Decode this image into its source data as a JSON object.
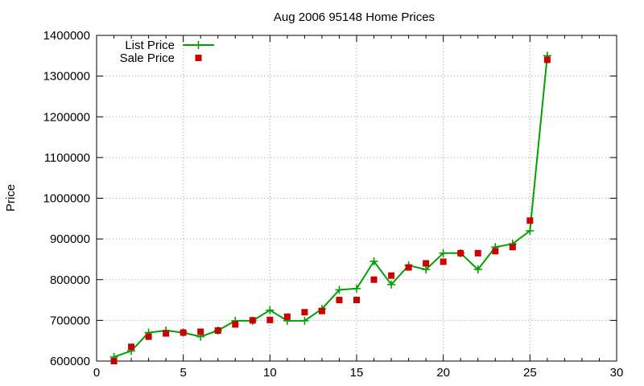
{
  "chart_data": {
    "type": "line",
    "title": "Aug 2006 95148 Home Prices",
    "xlabel": "",
    "ylabel": "Price",
    "xlim": [
      0,
      30
    ],
    "ylim": [
      600000,
      1400000
    ],
    "xticks": [
      "0",
      "5",
      "10",
      "15",
      "20",
      "25",
      "30"
    ],
    "yticks": [
      "600000",
      "700000",
      "800000",
      "900000",
      "1000000",
      "1100000",
      "1200000",
      "1300000",
      "1400000"
    ],
    "grid": true,
    "legend_position": "top-left",
    "series": [
      {
        "name": "List Price",
        "style": "line-with-plus-markers",
        "color": "#00a000",
        "x": [
          1,
          2,
          3,
          4,
          5,
          6,
          7,
          8,
          9,
          10,
          11,
          12,
          13,
          14,
          15,
          16,
          17,
          18,
          19,
          20,
          21,
          22,
          23,
          24,
          25,
          26
        ],
        "y": [
          610000,
          625000,
          670000,
          675000,
          670000,
          660000,
          675000,
          699000,
          699000,
          725000,
          699000,
          699000,
          728000,
          775000,
          778000,
          845000,
          788000,
          835000,
          825000,
          865000,
          865000,
          825000,
          880000,
          888000,
          920000,
          1350000
        ]
      },
      {
        "name": "Sale Price",
        "style": "square-points",
        "color": "#cc0000",
        "x": [
          1,
          2,
          3,
          4,
          5,
          6,
          7,
          8,
          9,
          10,
          11,
          12,
          13,
          14,
          15,
          16,
          17,
          18,
          19,
          20,
          21,
          22,
          23,
          24,
          25,
          26
        ],
        "y": [
          600000,
          635000,
          660000,
          668000,
          670000,
          672000,
          675000,
          690000,
          700000,
          701000,
          709000,
          720000,
          723000,
          750000,
          750000,
          800000,
          810000,
          830000,
          840000,
          844000,
          865000,
          865000,
          870000,
          880000,
          945000,
          1340000
        ]
      }
    ]
  }
}
